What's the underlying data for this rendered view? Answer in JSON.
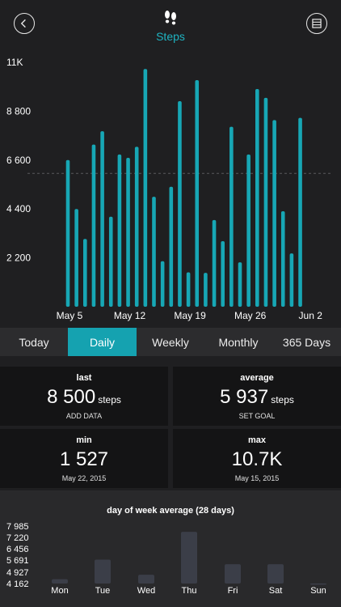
{
  "header": {
    "title": "Steps",
    "back_icon": "chevron-left-icon",
    "menu_icon": "list-icon",
    "app_icon": "footprints-icon",
    "accent": "#1fb3c1"
  },
  "chart_data": {
    "type": "bar",
    "ylim": [
      0,
      11000
    ],
    "y_ticks": [
      {
        "value": 2200,
        "label": "2 200"
      },
      {
        "value": 4400,
        "label": "4 400"
      },
      {
        "value": 6600,
        "label": "6 600"
      },
      {
        "value": 8800,
        "label": "8 800"
      },
      {
        "value": 11000,
        "label": "11K"
      }
    ],
    "x_ticks": [
      {
        "index": 0,
        "label": "May 5"
      },
      {
        "index": 7,
        "label": "May 12"
      },
      {
        "index": 14,
        "label": "May 19"
      },
      {
        "index": 21,
        "label": "May 26"
      },
      {
        "index": 28,
        "label": "Jun 2"
      }
    ],
    "reference_line": 6000,
    "bar_color": "#17a7b5",
    "values": [
      6600,
      4400,
      3050,
      7300,
      7900,
      4050,
      6850,
      6700,
      7200,
      10700,
      4950,
      2050,
      5400,
      9250,
      1550,
      10200,
      1527,
      3900,
      2950,
      8100,
      2000,
      6850,
      9800,
      9400,
      8400,
      4300,
      2400,
      8500
    ]
  },
  "tabs": [
    {
      "label": "Today",
      "active": false
    },
    {
      "label": "Daily",
      "active": true
    },
    {
      "label": "Weekly",
      "active": false
    },
    {
      "label": "Monthly",
      "active": false
    },
    {
      "label": "365 Days",
      "active": false
    }
  ],
  "stats": {
    "last": {
      "label": "last",
      "value": "8 500",
      "unit": "steps",
      "sub": "ADD DATA"
    },
    "average": {
      "label": "average",
      "value": "5 937",
      "unit": "steps",
      "sub": "SET GOAL"
    },
    "min": {
      "label": "min",
      "value": "1 527",
      "sub": "May 22, 2015"
    },
    "max": {
      "label": "max",
      "value": "10.7K",
      "sub": "May 15, 2015"
    }
  },
  "dow_chart": {
    "type": "bar",
    "title": "day of week average (28 days)",
    "ylim": [
      4162,
      7985
    ],
    "y_ticks": [
      "7 985",
      "7 220",
      "6 456",
      "5 691",
      "4 927",
      "4 162"
    ],
    "categories": [
      "Mon",
      "Tue",
      "Wed",
      "Thu",
      "Fri",
      "Sat",
      "Sun"
    ],
    "values": [
      4450,
      5750,
      4750,
      7600,
      5450,
      5450,
      4170
    ],
    "bar_color": "#3b3e48"
  }
}
